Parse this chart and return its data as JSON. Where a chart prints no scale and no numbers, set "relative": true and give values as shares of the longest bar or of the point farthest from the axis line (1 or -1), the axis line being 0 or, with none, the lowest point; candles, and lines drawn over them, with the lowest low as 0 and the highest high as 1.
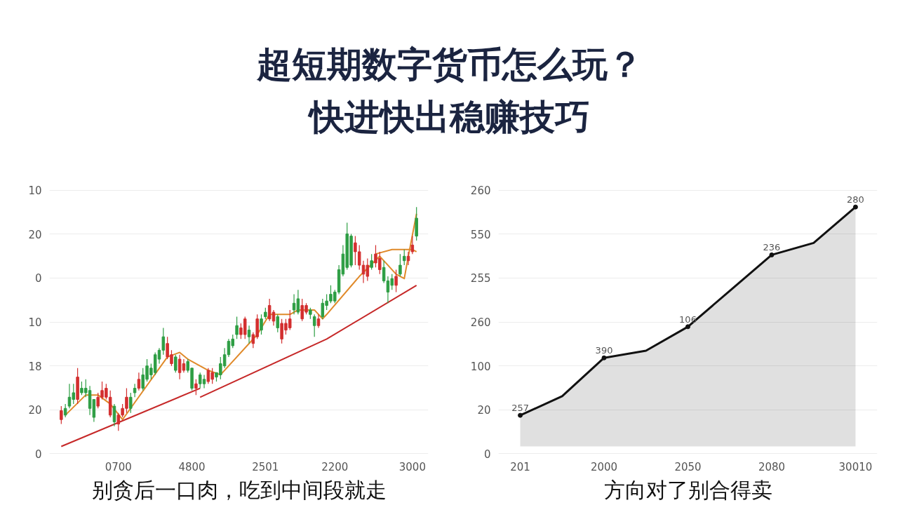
{
  "chart_data": [
    {
      "type": "other",
      "title": "超短期数字货币怎么玩？",
      "subtitle": "快进快出稳赚技巧"
    },
    {
      "type": "candlestick",
      "relative": true,
      "categories": [
        null,
        null,
        null,
        null,
        null,
        null,
        null,
        null,
        null,
        null,
        null,
        null,
        null,
        null,
        "0700",
        null,
        null,
        null,
        null,
        null,
        null,
        null,
        null,
        null,
        null,
        null,
        null,
        null,
        null,
        null,
        null,
        null,
        "4800",
        null,
        null,
        null,
        null,
        null,
        null,
        null,
        null,
        null,
        null,
        null,
        null,
        null,
        null,
        null,
        null,
        null,
        "2501",
        null,
        null,
        null,
        null,
        null,
        null,
        null,
        null,
        null,
        null,
        null,
        null,
        null,
        null,
        null,
        null,
        "2200",
        null,
        null,
        null,
        null,
        null,
        null,
        null,
        null,
        null,
        null,
        null,
        null,
        null,
        null,
        null,
        null,
        null,
        null,
        "3000",
        null
      ],
      "ohlc": [
        [
          0.09,
          0.11,
          0.03,
          0.05
        ],
        [
          0.07,
          0.12,
          0.06,
          0.1
        ],
        [
          0.11,
          0.21,
          0.1,
          0.15
        ],
        [
          0.14,
          0.21,
          0.12,
          0.17
        ],
        [
          0.24,
          0.28,
          0.12,
          0.14
        ],
        [
          0.17,
          0.22,
          0.16,
          0.19
        ],
        [
          0.17,
          0.23,
          0.15,
          0.19
        ],
        [
          0.1,
          0.2,
          0.07,
          0.18
        ],
        [
          0.06,
          0.14,
          0.04,
          0.14
        ],
        [
          0.15,
          0.17,
          0.1,
          0.11
        ],
        [
          0.18,
          0.22,
          0.14,
          0.15
        ],
        [
          0.19,
          0.21,
          0.14,
          0.15
        ],
        [
          0.15,
          0.18,
          0.06,
          0.07
        ],
        [
          0.04,
          0.12,
          0.02,
          0.11
        ],
        [
          0.07,
          0.08,
          0.0,
          0.03
        ],
        [
          0.1,
          0.12,
          0.06,
          0.07
        ],
        [
          0.15,
          0.19,
          0.08,
          0.1
        ],
        [
          0.1,
          0.17,
          0.08,
          0.15
        ],
        [
          0.17,
          0.21,
          0.15,
          0.19
        ],
        [
          0.23,
          0.26,
          0.18,
          0.19
        ],
        [
          0.19,
          0.28,
          0.18,
          0.25
        ],
        [
          0.23,
          0.32,
          0.22,
          0.29
        ],
        [
          0.25,
          0.3,
          0.23,
          0.28
        ],
        [
          0.26,
          0.35,
          0.25,
          0.34
        ],
        [
          0.32,
          0.37,
          0.3,
          0.36
        ],
        [
          0.36,
          0.46,
          0.34,
          0.42
        ],
        [
          0.39,
          0.42,
          0.32,
          0.33
        ],
        [
          0.34,
          0.36,
          0.29,
          0.3
        ],
        [
          0.27,
          0.34,
          0.26,
          0.33
        ],
        [
          0.32,
          0.34,
          0.23,
          0.26
        ],
        [
          0.3,
          0.32,
          0.26,
          0.27
        ],
        [
          0.27,
          0.32,
          0.26,
          0.31
        ],
        [
          0.19,
          0.28,
          0.18,
          0.28
        ],
        [
          0.21,
          0.23,
          0.16,
          0.19
        ],
        [
          0.21,
          0.26,
          0.19,
          0.25
        ],
        [
          0.21,
          0.25,
          0.19,
          0.23
        ],
        [
          0.27,
          0.28,
          0.21,
          0.22
        ],
        [
          0.26,
          0.28,
          0.21,
          0.23
        ],
        [
          0.24,
          0.26,
          0.22,
          0.26
        ],
        [
          0.25,
          0.33,
          0.23,
          0.3
        ],
        [
          0.29,
          0.37,
          0.28,
          0.34
        ],
        [
          0.34,
          0.41,
          0.33,
          0.4
        ],
        [
          0.38,
          0.43,
          0.37,
          0.41
        ],
        [
          0.43,
          0.51,
          0.41,
          0.47
        ],
        [
          0.46,
          0.48,
          0.41,
          0.43
        ],
        [
          0.5,
          0.51,
          0.41,
          0.43
        ],
        [
          0.42,
          0.47,
          0.39,
          0.45
        ],
        [
          0.43,
          0.44,
          0.37,
          0.39
        ],
        [
          0.5,
          0.52,
          0.41,
          0.42
        ],
        [
          0.45,
          0.52,
          0.43,
          0.5
        ],
        [
          0.51,
          0.55,
          0.5,
          0.53
        ],
        [
          0.56,
          0.59,
          0.49,
          0.5
        ],
        [
          0.53,
          0.54,
          0.47,
          0.49
        ],
        [
          0.46,
          0.52,
          0.44,
          0.51
        ],
        [
          0.48,
          0.5,
          0.39,
          0.41
        ],
        [
          0.48,
          0.5,
          0.43,
          0.45
        ],
        [
          0.5,
          0.54,
          0.45,
          0.46
        ],
        [
          0.54,
          0.61,
          0.52,
          0.57
        ],
        [
          0.53,
          0.63,
          0.52,
          0.59
        ],
        [
          0.56,
          0.59,
          0.49,
          0.5
        ],
        [
          0.56,
          0.57,
          0.52,
          0.53
        ],
        [
          0.52,
          0.55,
          0.5,
          0.54
        ],
        [
          0.47,
          0.52,
          0.42,
          0.51
        ],
        [
          0.5,
          0.52,
          0.46,
          0.47
        ],
        [
          0.51,
          0.59,
          0.5,
          0.57
        ],
        [
          0.56,
          0.61,
          0.54,
          0.58
        ],
        [
          0.58,
          0.65,
          0.57,
          0.61
        ],
        [
          0.58,
          0.63,
          0.57,
          0.62
        ],
        [
          0.62,
          0.74,
          0.61,
          0.72
        ],
        [
          0.7,
          0.83,
          0.69,
          0.79
        ],
        [
          0.73,
          0.93,
          0.72,
          0.88
        ],
        [
          0.74,
          0.88,
          0.73,
          0.87
        ],
        [
          0.84,
          0.87,
          0.74,
          0.8
        ],
        [
          0.8,
          0.83,
          0.72,
          0.74
        ],
        [
          0.74,
          0.76,
          0.66,
          0.7
        ],
        [
          0.74,
          0.77,
          0.67,
          0.69
        ],
        [
          0.73,
          0.79,
          0.72,
          0.76
        ],
        [
          0.79,
          0.83,
          0.73,
          0.75
        ],
        [
          0.77,
          0.8,
          0.7,
          0.72
        ],
        [
          0.67,
          0.76,
          0.66,
          0.73
        ],
        [
          0.62,
          0.69,
          0.57,
          0.67
        ],
        [
          0.65,
          0.7,
          0.63,
          0.68
        ],
        [
          0.69,
          0.72,
          0.62,
          0.65
        ],
        [
          0.7,
          0.79,
          0.69,
          0.74
        ],
        [
          0.76,
          0.81,
          0.74,
          0.78
        ],
        [
          0.78,
          0.8,
          0.74,
          0.76
        ],
        [
          0.83,
          0.87,
          0.79,
          0.8
        ],
        [
          0.87,
          1.0,
          0.85,
          0.95
        ]
      ],
      "colors": [
        "#d32f2f",
        "#2e9e44",
        "#2e9e44",
        "#2e9e44",
        "#d32f2f",
        "#2e9e44",
        "#2e9e44",
        "#2e9e44",
        "#2e9e44",
        "#d32f2f",
        "#d32f2f",
        "#d32f2f",
        "#d32f2f",
        "#2e9e44",
        "#d32f2f",
        "#d32f2f",
        "#d32f2f",
        "#2e9e44",
        "#2e9e44",
        "#d32f2f",
        "#2e9e44",
        "#2e9e44",
        "#2e9e44",
        "#2e9e44",
        "#2e9e44",
        "#2e9e44",
        "#d32f2f",
        "#d32f2f",
        "#2e9e44",
        "#d32f2f",
        "#d32f2f",
        "#2e9e44",
        "#2e9e44",
        "#d32f2f",
        "#2e9e44",
        "#2e9e44",
        "#d32f2f",
        "#d32f2f",
        "#2e9e44",
        "#2e9e44",
        "#2e9e44",
        "#2e9e44",
        "#2e9e44",
        "#2e9e44",
        "#d32f2f",
        "#d32f2f",
        "#2e9e44",
        "#d32f2f",
        "#d32f2f",
        "#2e9e44",
        "#2e9e44",
        "#d32f2f",
        "#d32f2f",
        "#2e9e44",
        "#d32f2f",
        "#d32f2f",
        "#d32f2f",
        "#2e9e44",
        "#2e9e44",
        "#d32f2f",
        "#d32f2f",
        "#2e9e44",
        "#2e9e44",
        "#d32f2f",
        "#2e9e44",
        "#2e9e44",
        "#2e9e44",
        "#2e9e44",
        "#2e9e44",
        "#2e9e44",
        "#2e9e44",
        "#2e9e44",
        "#d32f2f",
        "#d32f2f",
        "#d32f2f",
        "#d32f2f",
        "#2e9e44",
        "#d32f2f",
        "#d32f2f",
        "#2e9e44",
        "#2e9e44",
        "#2e9e44",
        "#d32f2f",
        "#2e9e44",
        "#2e9e44",
        "#d32f2f",
        "#d32f2f",
        "#2e9e44"
      ],
      "series": [
        {
          "type": "line",
          "color": "#e08a2a",
          "values": [
            null,
            0.07,
            null,
            null,
            null,
            null,
            0.16,
            null,
            null,
            0.16,
            null,
            null,
            0.12,
            null,
            null,
            0.05,
            null,
            null,
            null,
            null,
            null,
            null,
            null,
            null,
            null,
            null,
            0.33,
            null,
            null,
            0.35,
            null,
            0.32,
            null,
            null,
            null,
            null,
            0.27,
            null,
            null,
            0.25,
            null,
            null,
            null,
            null,
            null,
            null,
            null,
            null,
            0.43,
            null,
            null,
            0.52,
            null,
            0.52,
            null,
            null,
            0.52,
            null,
            0.54,
            null,
            null,
            null,
            0.54,
            null,
            0.5,
            0.52,
            null,
            null,
            null,
            null,
            null,
            null,
            null,
            0.69,
            null,
            null,
            null,
            null,
            0.78,
            null,
            null,
            null,
            0.7,
            null,
            0.68,
            0.78,
            null,
            0.97
          ]
        },
        {
          "type": "line",
          "color": "#e08a2a",
          "values": [
            null,
            null,
            null,
            null,
            null,
            null,
            null,
            null,
            null,
            null,
            null,
            null,
            null,
            null,
            null,
            null,
            null,
            null,
            null,
            null,
            null,
            null,
            null,
            null,
            null,
            null,
            null,
            null,
            null,
            null,
            null,
            null,
            null,
            null,
            null,
            null,
            null,
            null,
            null,
            null,
            null,
            null,
            null,
            null,
            null,
            null,
            null,
            null,
            null,
            null,
            null,
            null,
            null,
            null,
            null,
            null,
            null,
            null,
            null,
            null,
            null,
            null,
            null,
            null,
            null,
            null,
            null,
            null,
            null,
            null,
            null,
            null,
            null,
            null,
            null,
            null,
            null,
            0.79,
            null,
            null,
            null,
            0.81,
            null,
            null,
            null,
            null,
            0.81,
            0.8
          ]
        },
        {
          "type": "line",
          "color": "#c62828",
          "values": [
            -0.07,
            null,
            null,
            null,
            null,
            null,
            null,
            null,
            null,
            null,
            null,
            null,
            null,
            null,
            null,
            null,
            null,
            null,
            null,
            null,
            null,
            null,
            null,
            null,
            null,
            null,
            null,
            null,
            null,
            null,
            null,
            null,
            null,
            null,
            0.19,
            null,
            null,
            null,
            null,
            null,
            null,
            null,
            null,
            null,
            null,
            null,
            null,
            null,
            null,
            null,
            null,
            null,
            null,
            null,
            null,
            null,
            null,
            null,
            null,
            null,
            null,
            null,
            null,
            null,
            null,
            null,
            null,
            null,
            null,
            null,
            null,
            null,
            null,
            null,
            null,
            null,
            null,
            null,
            null,
            null,
            null,
            null,
            null,
            null,
            null,
            null,
            null,
            null
          ]
        },
        {
          "type": "line",
          "color": "#c62828",
          "values": [
            null,
            null,
            null,
            null,
            null,
            null,
            null,
            null,
            null,
            null,
            null,
            null,
            null,
            null,
            null,
            null,
            null,
            null,
            null,
            null,
            null,
            null,
            null,
            null,
            null,
            null,
            null,
            null,
            null,
            null,
            null,
            null,
            null,
            null,
            0.15,
            null,
            null,
            null,
            null,
            null,
            null,
            null,
            null,
            null,
            null,
            null,
            null,
            null,
            null,
            null,
            null,
            null,
            null,
            null,
            null,
            null,
            null,
            null,
            null,
            null,
            null,
            null,
            null,
            null,
            null,
            0.41,
            null,
            null,
            null,
            null,
            null,
            null,
            null,
            null,
            null,
            null,
            null,
            null,
            null,
            null,
            null,
            null,
            null,
            null,
            null,
            null,
            null,
            0.65
          ]
        }
      ],
      "grid": "y",
      "annotations": [
        "10",
        "20",
        "0",
        "10",
        "18",
        "20",
        "0",
        "别贪后一口肉，吃到中间段就走"
      ]
    },
    {
      "type": "area",
      "relative": true,
      "categories": [
        "201",
        null,
        "2000",
        null,
        "2050",
        null,
        "2080",
        null,
        "30010"
      ],
      "series": [
        {
          "color": "#111111",
          "values": [
            0.13,
            0.21,
            0.37,
            0.4,
            0.5,
            0.65,
            0.8,
            0.85,
            1.0
          ]
        }
      ],
      "grid": "y",
      "marker": "circle",
      "annotations": [
        {
          "text": "257",
          "x": "201",
          "y": 0.13
        },
        {
          "text": "390",
          "x": "2000",
          "y": 0.37
        },
        {
          "text": "106",
          "x": "2050",
          "y": 0.5
        },
        {
          "text": "236",
          "x": "2080",
          "y": 0.8
        },
        {
          "text": "280",
          "x": "30010",
          "y": 1.0
        },
        "260",
        "550",
        "255",
        "260",
        "100",
        "20",
        "0",
        "方向对了别合得卖"
      ]
    }
  ]
}
